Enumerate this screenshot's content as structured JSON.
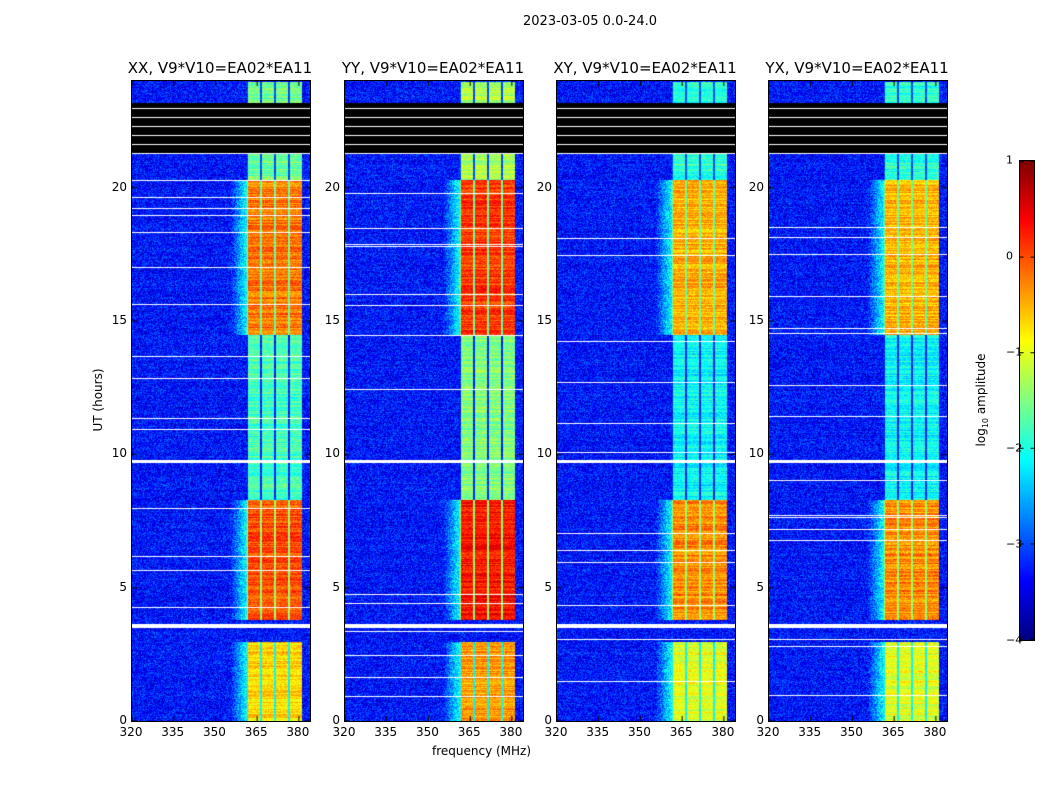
{
  "chart_data": {
    "type": "heatmap",
    "title": "2023-03-05 0.0-24.0",
    "xlabel": "frequency (MHz)",
    "ylabel": "UT (hours)",
    "xlim": [
      320,
      384
    ],
    "ylim": [
      0,
      24
    ],
    "xticks": [
      "320",
      "335",
      "350",
      "365",
      "380"
    ],
    "yticks": [
      "0",
      "5",
      "10",
      "15",
      "20"
    ],
    "panels": [
      {
        "title": "XX, V9*V10=EA02*EA11"
      },
      {
        "title": "YY, V9*V10=EA02*EA11"
      },
      {
        "title": "XY, V9*V10=EA02*EA11"
      },
      {
        "title": "YX, V9*V10=EA02*EA11"
      }
    ],
    "colorbar": {
      "label_main": "log",
      "label_sub": "10",
      "label_rest": " amplitude",
      "range": [
        -4,
        1
      ],
      "ticks": [
        "1",
        "0",
        "−1",
        "−2",
        "−3",
        "−4"
      ]
    },
    "rfi_band_mhz": [
      361,
      381
    ],
    "band_levels": [
      {
        "ut": [
          0,
          3
        ],
        "level": -0.7
      },
      {
        "ut": [
          3.8,
          8.3
        ],
        "level": 0.0
      },
      {
        "ut": [
          8.3,
          14.5
        ],
        "level": -1.8
      },
      {
        "ut": [
          14.5,
          20.3
        ],
        "level": -0.2
      },
      {
        "ut": [
          20.3,
          24
        ],
        "level": -1.6
      }
    ],
    "background_level": -3.3,
    "flagged_black_ut": [
      21.3,
      23.2
    ],
    "flagged_white_ut": [
      [
        3.5,
        3.65
      ],
      [
        9.7,
        9.8
      ],
      [
        21.6,
        21.9
      ],
      [
        22.05,
        22.15
      ]
    ]
  }
}
